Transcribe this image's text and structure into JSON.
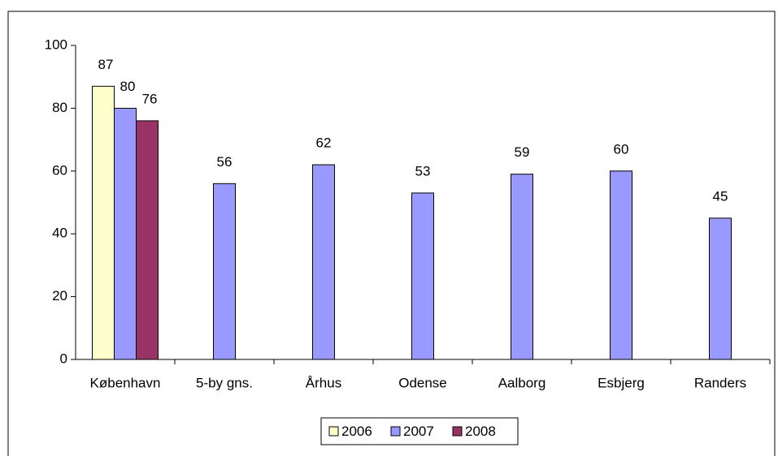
{
  "chart_data": {
    "type": "bar",
    "categories": [
      "København",
      "5-by gns.",
      "Århus",
      "Odense",
      "Aalborg",
      "Esbjerg",
      "Randers"
    ],
    "series": [
      {
        "name": "2006",
        "color": "#ffffcc",
        "values": [
          87,
          null,
          null,
          null,
          null,
          null,
          null
        ]
      },
      {
        "name": "2007",
        "color": "#9999ff",
        "values": [
          80,
          56,
          62,
          53,
          59,
          60,
          45
        ]
      },
      {
        "name": "2008",
        "color": "#993366",
        "values": [
          76,
          null,
          null,
          null,
          null,
          null,
          null
        ]
      }
    ],
    "ylim": [
      0,
      100
    ],
    "yticks": [
      0,
      20,
      40,
      60,
      80,
      100
    ],
    "grid": false,
    "legend": "bottom"
  }
}
